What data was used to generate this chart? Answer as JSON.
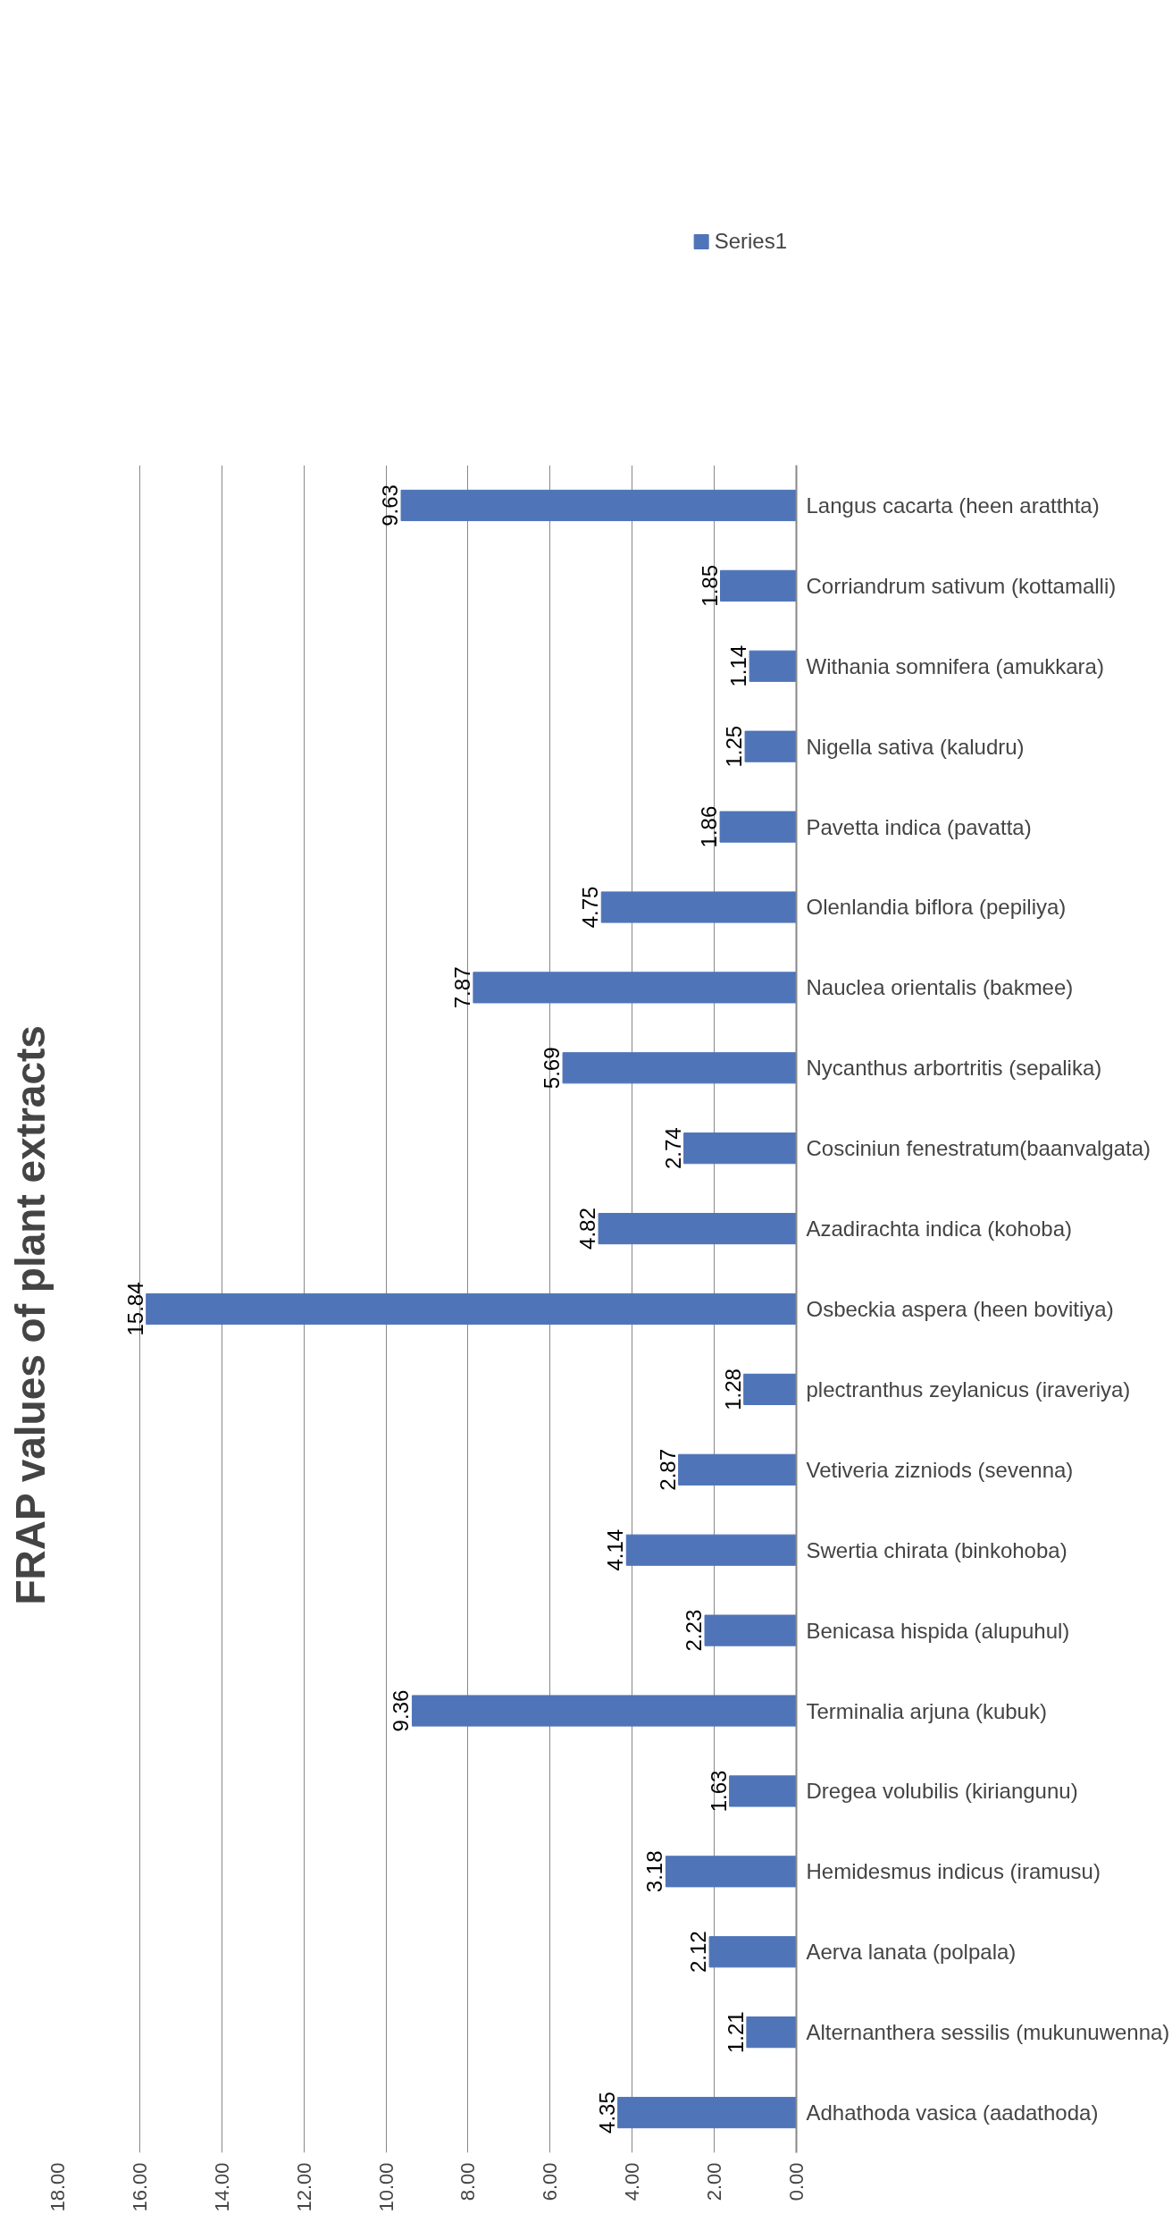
{
  "chart_data": {
    "type": "bar",
    "orientation": "horizontal",
    "title": "FRAP values of  plant extracts",
    "categories": [
      "Langus cacarta (heen aratthta)",
      "Corriandrum sativum (kottamalli)",
      "Withania somnifera (amukkara)",
      "Nigella sativa (kaludru)",
      "Pavetta indica (pavatta)",
      "Olenlandia biflora (pepiliya)",
      "Nauclea orientalis (bakmee)",
      "Nycanthus arbortritis (sepalika)",
      "Cosciniun fenestratum(baanvalgata)",
      "Azadirachta indica (kohoba)",
      "Osbeckia aspera (heen bovitiya)",
      "plectranthus zeylanicus (iraveriya)",
      "Vetiveria zizniods (sevenna)",
      "Swertia chirata (binkohoba)",
      "Benicasa hispida (alupuhul)",
      "Terminalia arjuna (kubuk)",
      "Dregea volubilis (kiriangunu)",
      "Hemidesmus indicus (iramusu)",
      "Aerva lanata (polpala)",
      "Alternanthera sessilis (mukunuwenna)",
      "Adhathoda vasica (aadathoda)"
    ],
    "series": [
      {
        "name": "Series1",
        "color": "#4f74b8",
        "values": [
          9.63,
          1.85,
          1.14,
          1.25,
          1.86,
          4.75,
          7.87,
          5.69,
          2.74,
          4.82,
          15.84,
          1.28,
          2.87,
          4.14,
          2.23,
          9.36,
          1.63,
          3.18,
          2.12,
          1.21,
          4.35
        ]
      }
    ],
    "xlim": [
      18,
      0
    ],
    "xticks": [
      {
        "value": 0,
        "label": "0.00"
      },
      {
        "value": 2,
        "label": "2.00"
      },
      {
        "value": 4,
        "label": "4.00"
      },
      {
        "value": 6,
        "label": "6.00"
      },
      {
        "value": 8,
        "label": "8.00"
      },
      {
        "value": 10,
        "label": "10.00"
      },
      {
        "value": 12,
        "label": "12.00"
      },
      {
        "value": 14,
        "label": "14.00"
      },
      {
        "value": 16,
        "label": "16.00"
      },
      {
        "value": 18,
        "label": "18.00"
      }
    ],
    "grid": "x",
    "legend": "top right",
    "data_labels": true
  }
}
